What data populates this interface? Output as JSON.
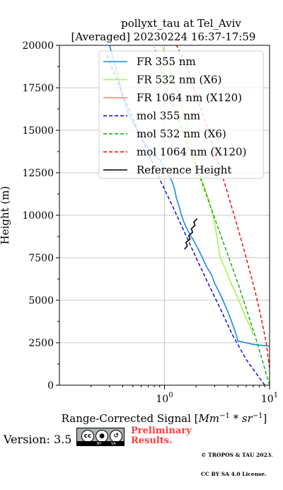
{
  "chart_data": {
    "type": "line",
    "title": "pollyxt_tau at Tel_Aviv",
    "subtitle": "[Averaged] 20230224 16:37-17:59",
    "xlabel": "Range-Corrected Signal [",
    "xlabel_math": "Mm",
    "xlabel_sup": "−1",
    "xlabel_mid": " * sr",
    "xlabel_sup2": "−1",
    "xlabel_end": "]",
    "ylabel": "Height (m)",
    "xscale": "log",
    "xlim": [
      0.1,
      10
    ],
    "ylim": [
      0,
      20000
    ],
    "grid": true,
    "legend_position": "upper right",
    "x_major_ticks": [
      {
        "value": 1,
        "base": "10",
        "exp": "0"
      },
      {
        "value": 10,
        "base": "10",
        "exp": "1"
      }
    ],
    "y_ticks": [
      0,
      2500,
      5000,
      7500,
      10000,
      12500,
      15000,
      17500,
      20000
    ],
    "series": [
      {
        "name": "FR 355 nm",
        "color": "#1e88e5",
        "style": "solid",
        "x": [
          10.0,
          7.0,
          5.0,
          4.8,
          4.5,
          4.2,
          3.9,
          3.6,
          3.3,
          3.0,
          2.8,
          2.5,
          2.3,
          2.1,
          1.9,
          1.7,
          1.55,
          1.45,
          1.38,
          1.3,
          1.25,
          1.18,
          1.05,
          1.0,
          0.92,
          0.8,
          0.7,
          0.6,
          0.55,
          0.45,
          0.4,
          0.35,
          0.3
        ],
        "y": [
          2300,
          2400,
          2600,
          3000,
          3500,
          4000,
          4500,
          5000,
          5500,
          6000,
          6500,
          7000,
          7500,
          8000,
          8500,
          9000,
          9500,
          10000,
          10500,
          11000,
          11500,
          12000,
          12500,
          12800,
          13200,
          13600,
          14000,
          14500,
          15000,
          16000,
          17000,
          18500,
          20000
        ]
      },
      {
        "name": "FR 532 nm (X6)",
        "color": "#a8f050",
        "style": "solid",
        "x": [
          7.0,
          6.5,
          5.9,
          5.5,
          5.1,
          4.7,
          4.3,
          4.0,
          3.7,
          3.4,
          3.2,
          3.1,
          2.9,
          2.6,
          2.3,
          2.1,
          1.9,
          1.75,
          1.6,
          1.45,
          1.3,
          1.15,
          0.95
        ],
        "y": [
          3000,
          3500,
          4000,
          4500,
          5000,
          5500,
          6000,
          6500,
          7000,
          7500,
          8500,
          9000,
          10000,
          11000,
          12000,
          12500,
          13500,
          14500,
          15500,
          16500,
          17500,
          18500,
          19900
        ]
      },
      {
        "name": "FR 1064 nm (X120)",
        "color": "#f08080",
        "style": "solid",
        "x": [],
        "y": []
      },
      {
        "name": "mol 355 nm",
        "color": "#0000cc",
        "style": "dashed",
        "x": [
          9.0,
          6.0,
          4.4,
          3.4,
          2.6,
          2.0,
          1.55,
          1.2,
          0.92,
          0.72,
          0.56,
          0.44,
          0.35,
          0.28
        ],
        "y": [
          0,
          1500,
          3000,
          4500,
          6000,
          7500,
          9000,
          10500,
          12000,
          13500,
          15000,
          16500,
          18000,
          19500
        ]
      },
      {
        "name": "mol 532 nm (X6)",
        "color": "#00aa00",
        "style": "dashed",
        "x": [
          10.0,
          8.5,
          7.2,
          6.0,
          5.0,
          4.1,
          3.35,
          2.75,
          2.25,
          1.82,
          1.48,
          1.2,
          0.98,
          0.8
        ],
        "y": [
          0,
          1500,
          3000,
          4500,
          6000,
          7500,
          9000,
          10500,
          12000,
          13500,
          15000,
          16500,
          18000,
          19900
        ]
      },
      {
        "name": "mol 1064 nm (X120)",
        "color": "#ee0000",
        "style": "dashed",
        "x": [
          10.0,
          9.3,
          8.3,
          7.3,
          6.3,
          5.4,
          4.6,
          3.9,
          3.3,
          2.75,
          2.3,
          1.9,
          1.58,
          1.3
        ],
        "y": [
          1000,
          2500,
          4000,
          5500,
          7000,
          8500,
          10000,
          11500,
          13000,
          14500,
          16000,
          17500,
          19000,
          20000
        ]
      },
      {
        "name": "Reference Height",
        "color": "#000000",
        "style": "solid",
        "x": [
          1.55,
          1.65,
          1.6,
          1.75,
          1.7,
          1.85,
          1.8,
          1.95,
          1.9,
          2.05
        ],
        "y": [
          8000,
          8200,
          8400,
          8600,
          8800,
          9000,
          9200,
          9400,
          9600,
          9800
        ]
      }
    ]
  },
  "footer": {
    "version": "Version: 3.5",
    "badge_cc": "cc",
    "badge_by": "BY",
    "badge_sa": "SA",
    "preliminary_line1": "Preliminary",
    "preliminary_line2": "Results.",
    "copyright_line1": "© TROPOS & TAU 2023.",
    "copyright_line2": "CC BY SA 4.0 License."
  }
}
